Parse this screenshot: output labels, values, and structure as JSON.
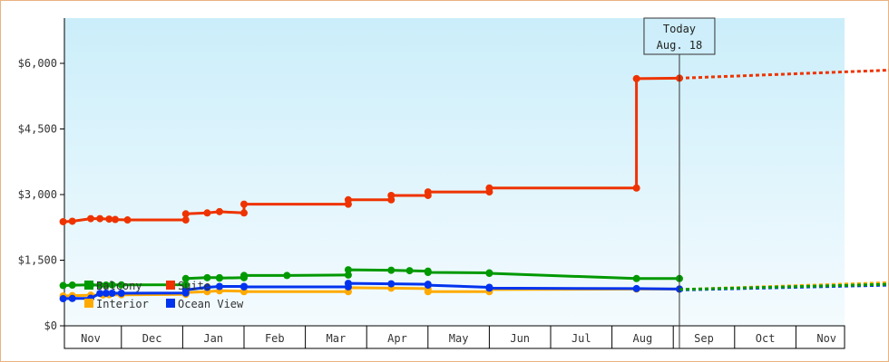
{
  "chart_data": {
    "type": "line",
    "x_unit": "months",
    "x_ticks": [
      "Nov",
      "Dec",
      "Jan",
      "Feb",
      "Mar",
      "Apr",
      "May",
      "Jun",
      "Jul",
      "Aug",
      "Sep",
      "Oct",
      "Nov"
    ],
    "y_ticks": [
      "$0",
      "$1,500",
      "$3,000",
      "$4,500",
      "$6,000"
    ],
    "ylim": [
      0,
      6000
    ],
    "grid": false,
    "legend_position": "bottom-left",
    "today": {
      "line1": "Today",
      "line2": "Aug. 18",
      "x": 9.6
    },
    "series": [
      {
        "name": "Balcony",
        "color": "#009900",
        "points": [
          [
            -0.45,
            920
          ],
          [
            -0.3,
            930
          ],
          [
            0,
            935
          ],
          [
            0.15,
            930
          ],
          [
            0.25,
            930
          ],
          [
            0.35,
            935
          ],
          [
            0.5,
            935
          ],
          [
            1.55,
            940
          ],
          [
            1.55,
            1080
          ],
          [
            1.9,
            1100
          ],
          [
            2.1,
            1100
          ],
          [
            2.1,
            1090
          ],
          [
            2.5,
            1100
          ],
          [
            2.5,
            1150
          ],
          [
            3.2,
            1150
          ],
          [
            4.2,
            1160
          ],
          [
            4.2,
            1280
          ],
          [
            4.9,
            1270
          ],
          [
            5.2,
            1260
          ],
          [
            5.5,
            1250
          ],
          [
            5.5,
            1220
          ],
          [
            6.5,
            1210
          ],
          [
            6.5,
            1200
          ],
          [
            8.9,
            1080
          ],
          [
            9.6,
            1080
          ]
        ],
        "projection": [
          [
            9.6,
            830
          ],
          [
            13.3,
            960
          ]
        ]
      },
      {
        "name": "Suite",
        "color": "#ee3300",
        "points": [
          [
            -0.45,
            2380
          ],
          [
            -0.3,
            2390
          ],
          [
            0,
            2450
          ],
          [
            0.15,
            2450
          ],
          [
            0.3,
            2440
          ],
          [
            0.4,
            2430
          ],
          [
            0.6,
            2420
          ],
          [
            1.55,
            2420
          ],
          [
            1.55,
            2560
          ],
          [
            1.9,
            2580
          ],
          [
            2.1,
            2610
          ],
          [
            2.5,
            2580
          ],
          [
            2.5,
            2780
          ],
          [
            4.2,
            2780
          ],
          [
            4.2,
            2880
          ],
          [
            4.9,
            2880
          ],
          [
            4.9,
            2980
          ],
          [
            5.5,
            2980
          ],
          [
            5.5,
            3060
          ],
          [
            6.5,
            3060
          ],
          [
            6.5,
            3150
          ],
          [
            8.9,
            3150
          ],
          [
            8.9,
            5650
          ],
          [
            9.6,
            5660
          ]
        ],
        "projection": [
          [
            9.6,
            5660
          ],
          [
            13.3,
            5860
          ]
        ]
      },
      {
        "name": "Interior",
        "color": "#ffaa00",
        "points": [
          [
            -0.45,
            680
          ],
          [
            -0.3,
            690
          ],
          [
            0,
            700
          ],
          [
            0.2,
            705
          ],
          [
            0.3,
            710
          ],
          [
            0.5,
            710
          ],
          [
            1.55,
            720
          ],
          [
            1.55,
            760
          ],
          [
            1.9,
            780
          ],
          [
            2.1,
            800
          ],
          [
            2.5,
            790
          ],
          [
            2.5,
            780
          ],
          [
            4.2,
            780
          ],
          [
            4.2,
            870
          ],
          [
            4.9,
            860
          ],
          [
            5.5,
            850
          ],
          [
            5.5,
            780
          ],
          [
            6.5,
            780
          ],
          [
            6.5,
            830
          ],
          [
            8.9,
            840
          ],
          [
            9.6,
            840
          ]
        ],
        "projection": [
          [
            9.6,
            830
          ],
          [
            13.3,
            1000
          ]
        ]
      },
      {
        "name": "Ocean View",
        "color": "#0033ee",
        "points": [
          [
            -0.45,
            620
          ],
          [
            -0.3,
            625
          ],
          [
            0,
            630
          ],
          [
            0.15,
            740
          ],
          [
            0.25,
            745
          ],
          [
            0.35,
            745
          ],
          [
            0.5,
            745
          ],
          [
            1.55,
            750
          ],
          [
            1.55,
            820
          ],
          [
            1.9,
            880
          ],
          [
            2.1,
            900
          ],
          [
            2.5,
            900
          ],
          [
            2.5,
            890
          ],
          [
            4.2,
            890
          ],
          [
            4.2,
            970
          ],
          [
            4.9,
            960
          ],
          [
            5.5,
            950
          ],
          [
            5.5,
            930
          ],
          [
            6.5,
            880
          ],
          [
            6.5,
            860
          ],
          [
            8.9,
            850
          ],
          [
            9.6,
            840
          ]
        ],
        "projection": [
          [
            9.6,
            820
          ],
          [
            13.3,
            940
          ]
        ]
      }
    ]
  }
}
